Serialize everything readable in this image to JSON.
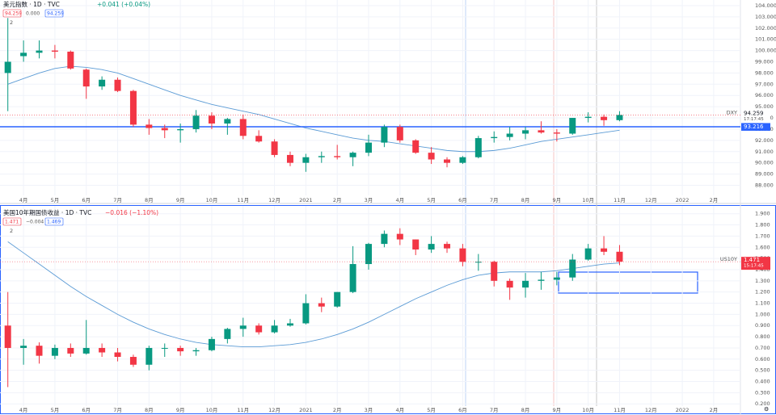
{
  "chart_data": [
    {
      "type": "candlestick",
      "title": "美元指数",
      "interval": "1D",
      "source": "TVC",
      "change": "+0.041 (+0.04%)",
      "header_values": [
        "94.259",
        "0.000",
        "94.259"
      ],
      "indicators": "2",
      "symbol": "DXY",
      "last_price": 94.259,
      "countdown": "17:17:45",
      "hline": 93.216,
      "up_color": "#089981",
      "down_color": "#f23645",
      "categories": [
        null,
        "4月",
        null,
        "5月",
        null,
        "6月",
        null,
        "7月",
        null,
        "8月",
        null,
        "9月",
        null,
        "10月",
        null,
        "11月",
        null,
        "12月",
        null,
        "2021",
        null,
        "2月",
        null,
        "3月",
        null,
        "4月",
        null,
        "5月",
        null,
        "6月",
        null,
        "7月",
        null,
        "8月",
        null,
        "9月",
        null,
        "10月",
        null,
        "11月",
        null,
        "12月",
        null,
        "2022",
        null,
        "2月",
        null
      ],
      "open": [
        98,
        99.5,
        99.8,
        100,
        99.9,
        98.3,
        96.8,
        97.4,
        96.4,
        93.4,
        93.1,
        92.9,
        93,
        94.2,
        93.5,
        93.9,
        92.4,
        91.9,
        90.7,
        90,
        90.5,
        90.6,
        90.5,
        90.9,
        91.8,
        93.2,
        92,
        90.9,
        90.3,
        90,
        90.5,
        92.2,
        92.3,
        92.6,
        92.9,
        92.7,
        92.6,
        94.0,
        94.1,
        93.8,
        null,
        null,
        null,
        null,
        null,
        null,
        null
      ],
      "high": [
        102.9,
        100.9,
        100.9,
        100.5,
        100,
        98.4,
        97.7,
        97.6,
        96.5,
        93.9,
        93.4,
        93.5,
        94.7,
        94.5,
        94.0,
        94.3,
        92.9,
        92.1,
        91.0,
        90.8,
        91.0,
        91.6,
        91.0,
        92.5,
        93.4,
        93.4,
        92.1,
        91.4,
        90.5,
        90.6,
        92.4,
        92.8,
        93.2,
        93.2,
        93.7,
        93.0,
        94.0,
        94.5,
        94.3,
        94.6,
        null,
        null,
        null,
        null,
        null,
        null,
        null
      ],
      "low": [
        94.6,
        99,
        99.3,
        99.3,
        98.3,
        95.7,
        96.5,
        96.3,
        93.2,
        92.5,
        92.2,
        91.8,
        92.7,
        93.0,
        92.5,
        92.1,
        91.8,
        90.5,
        89.7,
        89.2,
        90.0,
        90.3,
        89.7,
        90.6,
        91.4,
        91.8,
        90.8,
        89.9,
        89.6,
        89.9,
        90.4,
        91.8,
        92.0,
        92.1,
        92.6,
        91.9,
        92.5,
        93.6,
        93.3,
        93.7,
        null,
        null,
        null,
        null,
        null,
        null,
        null
      ],
      "close": [
        99,
        99.8,
        100,
        99.9,
        98.4,
        96.8,
        97.4,
        96.4,
        93.4,
        93.1,
        92.9,
        93.0,
        94.2,
        93.5,
        93.9,
        92.4,
        91.9,
        90.7,
        90.0,
        90.5,
        90.6,
        90.5,
        90.9,
        91.8,
        93.2,
        92.0,
        90.9,
        90.3,
        90.0,
        90.5,
        92.2,
        92.3,
        92.6,
        92.9,
        92.7,
        92.6,
        94.0,
        94.1,
        93.8,
        94.26,
        null,
        null,
        null,
        null,
        null,
        null,
        null
      ],
      "series": [
        {
          "color": "#5b9bd5",
          "values": [
            97,
            97.5,
            98,
            98.4,
            98.6,
            98.5,
            98.3,
            98.0,
            97.5,
            97.0,
            96.5,
            96.0,
            95.6,
            95.2,
            94.9,
            94.6,
            94.3,
            93.9,
            93.5,
            93.1,
            92.8,
            92.5,
            92.2,
            92.0,
            91.9,
            91.7,
            91.5,
            91.3,
            91.1,
            91.0,
            91.0,
            91.1,
            91.3,
            91.6,
            91.9,
            92.1,
            92.3,
            92.5,
            92.7,
            92.9,
            null,
            null,
            null,
            null,
            null,
            null,
            null
          ]
        }
      ],
      "ylim": [
        87.1,
        104.5
      ],
      "yticks": [
        {
          "value": 88,
          "label": "88.000"
        },
        {
          "value": 89,
          "label": "89.000"
        },
        {
          "value": 90,
          "label": "90.000"
        },
        {
          "value": 91,
          "label": "91.000"
        },
        {
          "value": 92,
          "label": "92.000"
        },
        {
          "value": 93,
          "label": "93.000"
        },
        {
          "value": 94,
          "label": "94.000"
        },
        {
          "value": 95,
          "label": "95.000"
        },
        {
          "value": 96,
          "label": "96.000"
        },
        {
          "value": 97,
          "label": "97.000"
        },
        {
          "value": 98,
          "label": "98.000"
        },
        {
          "value": 99,
          "label": "99.000"
        },
        {
          "value": 100,
          "label": "100.000"
        },
        {
          "value": 101,
          "label": "101.000"
        },
        {
          "value": 102,
          "label": "102.000"
        },
        {
          "value": 103,
          "label": "103.000"
        },
        {
          "value": 104,
          "label": "104.000"
        }
      ]
    },
    {
      "type": "candlestick",
      "title": "美国10年期国债收益",
      "interval": "1D",
      "source": "TVC",
      "change": "−0.016 (−1.10%)",
      "header_values": [
        "1.471",
        "−0.004",
        "1.469"
      ],
      "indicators": "2",
      "symbol": "US10Y",
      "last_price": 1.471,
      "countdown": "15:17:45",
      "up_color": "#089981",
      "down_color": "#f23645",
      "categories": [
        null,
        "4月",
        null,
        "5月",
        null,
        "6月",
        null,
        "7月",
        null,
        "8月",
        null,
        "9月",
        null,
        "10月",
        null,
        "11月",
        null,
        "12月",
        null,
        "2021",
        null,
        "2月",
        null,
        "3月",
        null,
        "4月",
        null,
        "5月",
        null,
        "6月",
        null,
        "7月",
        null,
        "8月",
        null,
        "9月",
        null,
        "10月",
        null,
        "11月",
        null,
        "12月",
        null,
        "2022",
        null,
        "2月",
        null
      ],
      "open": [
        0.9,
        0.7,
        0.72,
        0.63,
        0.7,
        0.65,
        0.7,
        0.66,
        0.62,
        0.55,
        0.7,
        0.7,
        0.67,
        0.68,
        0.78,
        0.87,
        0.9,
        0.84,
        0.9,
        0.92,
        1.1,
        1.07,
        1.2,
        1.45,
        1.63,
        1.72,
        1.67,
        1.58,
        1.63,
        1.59,
        1.47,
        1.47,
        1.3,
        1.24,
        1.3,
        1.31,
        1.33,
        1.49,
        1.59,
        1.56,
        null,
        null,
        null,
        null,
        null,
        null,
        null
      ],
      "high": [
        1.2,
        0.78,
        0.75,
        0.73,
        0.74,
        0.95,
        0.74,
        0.7,
        0.64,
        0.72,
        0.74,
        0.72,
        0.7,
        0.8,
        0.88,
        0.97,
        0.92,
        0.95,
        0.96,
        1.18,
        1.15,
        1.2,
        1.61,
        1.64,
        1.75,
        1.77,
        1.67,
        1.7,
        1.65,
        1.63,
        1.54,
        1.48,
        1.32,
        1.37,
        1.38,
        1.38,
        1.54,
        1.63,
        1.7,
        1.62,
        null,
        null,
        null,
        null,
        null,
        null,
        null
      ],
      "low": [
        0.35,
        0.55,
        0.56,
        0.6,
        0.62,
        0.64,
        0.62,
        0.58,
        0.53,
        0.5,
        0.62,
        0.63,
        0.63,
        0.67,
        0.74,
        0.8,
        0.82,
        0.83,
        0.89,
        0.91,
        1.02,
        1.06,
        1.19,
        1.4,
        1.6,
        1.62,
        1.53,
        1.55,
        1.55,
        1.43,
        1.39,
        1.25,
        1.13,
        1.15,
        1.22,
        1.26,
        1.3,
        1.48,
        1.53,
        1.44,
        null,
        null,
        null,
        null,
        null,
        null,
        null
      ],
      "close": [
        0.7,
        0.72,
        0.63,
        0.7,
        0.65,
        0.7,
        0.66,
        0.62,
        0.55,
        0.7,
        0.7,
        0.67,
        0.68,
        0.78,
        0.87,
        0.9,
        0.84,
        0.9,
        0.92,
        1.1,
        1.07,
        1.2,
        1.45,
        1.63,
        1.72,
        1.67,
        1.58,
        1.63,
        1.59,
        1.47,
        1.47,
        1.3,
        1.24,
        1.3,
        1.31,
        1.33,
        1.49,
        1.59,
        1.56,
        1.471,
        null,
        null,
        null,
        null,
        null,
        null,
        null
      ],
      "series": [
        {
          "color": "#5b9bd5",
          "values": [
            1.65,
            1.55,
            1.45,
            1.35,
            1.25,
            1.16,
            1.08,
            1.0,
            0.93,
            0.87,
            0.82,
            0.78,
            0.75,
            0.73,
            0.72,
            0.71,
            0.71,
            0.72,
            0.73,
            0.75,
            0.78,
            0.82,
            0.87,
            0.93,
            1.0,
            1.07,
            1.14,
            1.2,
            1.26,
            1.31,
            1.35,
            1.37,
            1.38,
            1.38,
            1.38,
            1.39,
            1.41,
            1.43,
            1.45,
            1.46,
            null,
            null,
            null,
            null,
            null,
            null,
            null
          ]
        }
      ],
      "ylim": [
        0.18,
        1.97
      ],
      "yticks": [
        {
          "value": 0.2,
          "label": "0.200"
        },
        {
          "value": 0.3,
          "label": "0.300"
        },
        {
          "value": 0.4,
          "label": "0.400"
        },
        {
          "value": 0.5,
          "label": "0.500"
        },
        {
          "value": 0.6,
          "label": "0.600"
        },
        {
          "value": 0.7,
          "label": "0.700"
        },
        {
          "value": 0.8,
          "label": "0.800"
        },
        {
          "value": 0.9,
          "label": "0.900"
        },
        {
          "value": 1.0,
          "label": "1.000"
        },
        {
          "value": 1.1,
          "label": "1.100"
        },
        {
          "value": 1.2,
          "label": "1.200"
        },
        {
          "value": 1.3,
          "label": "1.300"
        },
        {
          "value": 1.4,
          "label": "1.400"
        },
        {
          "value": 1.5,
          "label": "1.500"
        },
        {
          "value": 1.6,
          "label": "1.600"
        },
        {
          "value": 1.7,
          "label": "1.700"
        },
        {
          "value": 1.8,
          "label": "1.800"
        },
        {
          "value": 1.9,
          "label": "1.900"
        }
      ]
    }
  ]
}
